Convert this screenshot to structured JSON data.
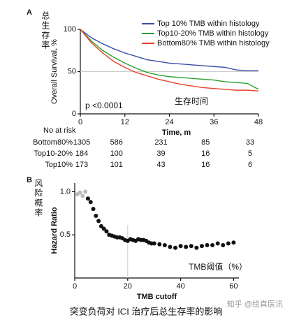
{
  "chart_data": [
    {
      "type": "line",
      "panel": "A",
      "side_label": "总生存率",
      "ylabel": "Overall Survival, %",
      "xlabel": "Time, m",
      "x": [
        0,
        3,
        6,
        9,
        12,
        15,
        18,
        21,
        24,
        27,
        30,
        33,
        36,
        39,
        42,
        45,
        48
      ],
      "series": [
        {
          "name": "Top 10% TMB within histology",
          "color": "#3a4ea6",
          "values": [
            100,
            90,
            83,
            77,
            72,
            68,
            64,
            62,
            60,
            59,
            58,
            57,
            56,
            55,
            52,
            51,
            51
          ]
        },
        {
          "name": "Top10-20% TMB within histology",
          "color": "#2ca02c",
          "values": [
            100,
            86,
            75,
            67,
            60,
            54,
            49,
            46,
            44,
            43,
            42,
            41,
            40,
            38,
            37,
            36,
            29
          ]
        },
        {
          "name": "Bottom80% TMB within histology",
          "color": "#e8412c",
          "values": [
            100,
            84,
            72,
            62,
            55,
            49,
            45,
            41,
            38,
            35,
            33,
            31,
            30,
            29,
            28,
            28,
            27
          ]
        }
      ],
      "xlim": [
        0,
        48
      ],
      "ylim": [
        0,
        100
      ],
      "xticks": [
        0,
        12,
        24,
        36,
        48
      ],
      "yticks": [
        0,
        50,
        100
      ],
      "ref_y": 50,
      "legend": "upper right",
      "pvalue": "p <0.0001",
      "annotation": "生存时间",
      "risk_table": {
        "header": "No at risk",
        "rows": [
          {
            "label": "Bottom80%",
            "values": [
              1305,
              586,
              231,
              85,
              33
            ]
          },
          {
            "label": "Top10-20%",
            "values": [
              184,
              100,
              39,
              16,
              5
            ]
          },
          {
            "label": "Top10%",
            "values": [
              173,
              101,
              43,
              16,
              6
            ]
          }
        ]
      }
    },
    {
      "type": "scatter",
      "panel": "B",
      "side_label": "风险概率",
      "ylabel": "Hazard Ratio",
      "xlabel": "TMB cutoff",
      "x": [
        1,
        2,
        3,
        4,
        5,
        6,
        7,
        8,
        9,
        10,
        11,
        12,
        13,
        14,
        15,
        16,
        17,
        18,
        19,
        20,
        21,
        22,
        23,
        24,
        25,
        26,
        27,
        28,
        29,
        30,
        32,
        34,
        36,
        38,
        40,
        42,
        44,
        46,
        48,
        50,
        52,
        54,
        56,
        58,
        60
      ],
      "values": [
        0.97,
        0.99,
        0.95,
        1.0,
        0.92,
        0.88,
        0.8,
        0.72,
        0.66,
        0.6,
        0.57,
        0.54,
        0.5,
        0.49,
        0.48,
        0.47,
        0.47,
        0.46,
        0.44,
        0.43,
        0.45,
        0.44,
        0.43,
        0.45,
        0.44,
        0.44,
        0.43,
        0.41,
        0.4,
        0.4,
        0.39,
        0.38,
        0.36,
        0.35,
        0.37,
        0.36,
        0.37,
        0.35,
        0.37,
        0.38,
        0.38,
        0.4,
        0.38,
        0.4,
        0.41
      ],
      "colors": [
        "#bbb",
        "#bbb",
        "#bbb",
        "#bbb",
        "#111",
        "#111",
        "#111",
        "#111",
        "#111",
        "#111",
        "#111",
        "#111",
        "#111",
        "#111",
        "#111",
        "#111",
        "#111",
        "#111",
        "#111",
        "#111",
        "#111",
        "#111",
        "#111",
        "#111",
        "#111",
        "#111",
        "#111",
        "#111",
        "#111",
        "#111",
        "#111",
        "#111",
        "#111",
        "#111",
        "#111",
        "#111",
        "#111",
        "#111",
        "#111",
        "#111",
        "#111",
        "#111",
        "#111",
        "#111",
        "#111"
      ],
      "xlim": [
        0,
        62
      ],
      "ylim": [
        0,
        1.1
      ],
      "xticks": [
        0,
        20,
        40,
        60
      ],
      "yticks": [
        0.5,
        {
          "value": 1,
          "label": "1.0"
        }
      ],
      "ref_x": 20,
      "annotation": "TMB阈值（%）"
    }
  ],
  "caption": "突变负荷对 ICI 治疗后总生存率的影响",
  "watermark": "知乎 @绘真医讯"
}
